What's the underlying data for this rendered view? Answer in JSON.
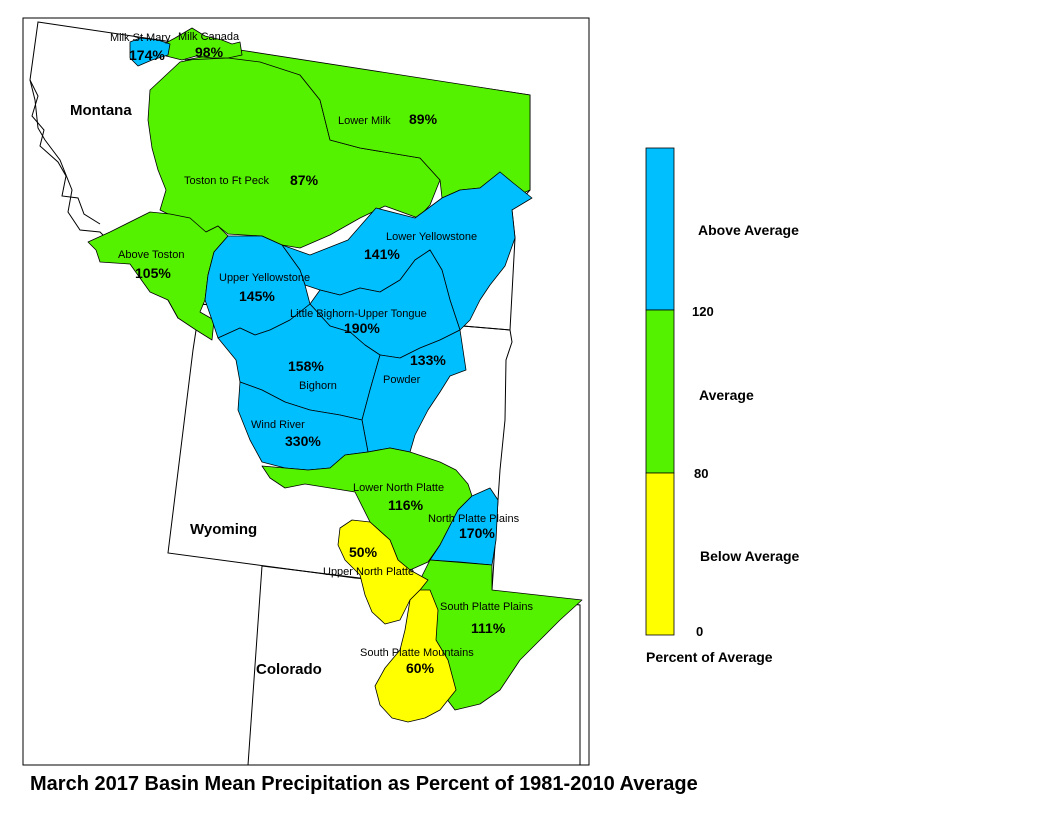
{
  "title": "March 2017 Basin Mean Precipitation as Percent of 1981-2010 Average",
  "colors": {
    "above": "#00BFFF",
    "average": "#55F200",
    "below": "#FFFF00",
    "border": "#000000"
  },
  "states": [
    {
      "id": "montana",
      "name": "Montana"
    },
    {
      "id": "wyoming",
      "name": "Wyoming"
    },
    {
      "id": "colorado",
      "name": "Colorado"
    }
  ],
  "basins": [
    {
      "id": "milk-st-mary",
      "name": "Milk St Mary",
      "percent": "174%",
      "category": "above"
    },
    {
      "id": "milk-canada",
      "name": "Milk Canada",
      "percent": "98%",
      "category": "average"
    },
    {
      "id": "lower-milk",
      "name": "Lower Milk",
      "percent": "89%",
      "category": "average"
    },
    {
      "id": "toston-to-ft-peck",
      "name": "Toston to Ft Peck",
      "percent": "87%",
      "category": "average"
    },
    {
      "id": "above-toston",
      "name": "Above Toston",
      "percent": "105%",
      "category": "average"
    },
    {
      "id": "lower-yellowstone",
      "name": "Lower Yellowstone",
      "percent": "141%",
      "category": "above"
    },
    {
      "id": "upper-yellowstone",
      "name": "Upper Yellowstone",
      "percent": "145%",
      "category": "above"
    },
    {
      "id": "little-bighorn-upper-tongue",
      "name": "Little Bighorn-Upper Tongue",
      "percent": "190%",
      "category": "above"
    },
    {
      "id": "bighorn",
      "name": "Bighorn",
      "percent": "158%",
      "category": "above"
    },
    {
      "id": "powder",
      "name": "Powder",
      "percent": "133%",
      "category": "above"
    },
    {
      "id": "wind-river",
      "name": "Wind River",
      "percent": "330%",
      "category": "above"
    },
    {
      "id": "lower-north-platte",
      "name": "Lower North Platte",
      "percent": "116%",
      "category": "average"
    },
    {
      "id": "north-platte-plains",
      "name": "North Platte Plains",
      "percent": "170%",
      "category": "above"
    },
    {
      "id": "upper-north-platte",
      "name": "Upper North Platte",
      "percent": "50%",
      "category": "below"
    },
    {
      "id": "south-platte-plains",
      "name": "South Platte Plains",
      "percent": "111%",
      "category": "average"
    },
    {
      "id": "south-platte-mountains",
      "name": "South Platte Mountains",
      "percent": "60%",
      "category": "below"
    }
  ],
  "legend": {
    "title": "Percent of Average",
    "classes": [
      {
        "label": "Above Average",
        "category": "above"
      },
      {
        "label": "Average",
        "category": "average"
      },
      {
        "label": "Below Average",
        "category": "below"
      }
    ],
    "breaks": [
      "120",
      "80",
      "0"
    ]
  }
}
